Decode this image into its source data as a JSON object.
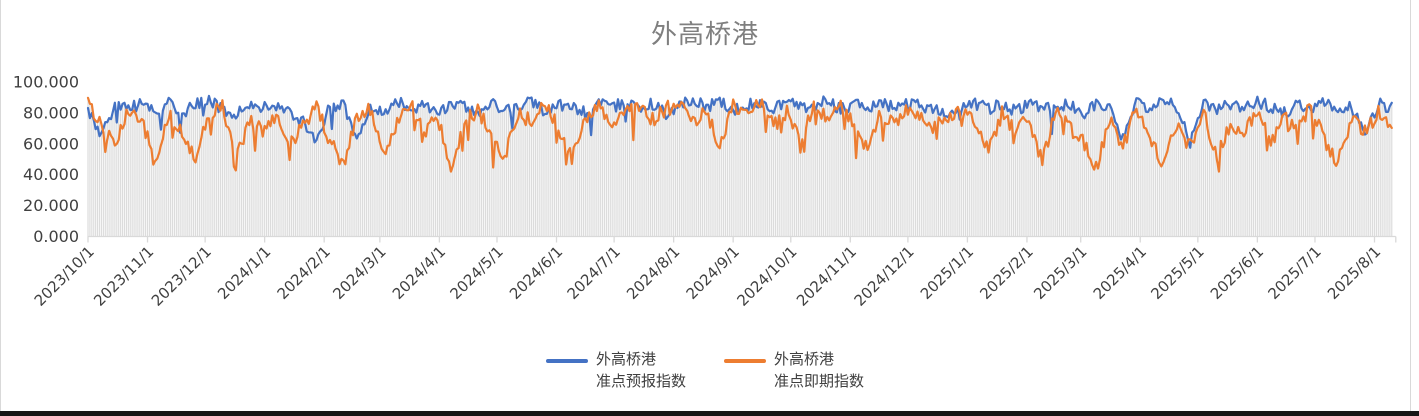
{
  "frame": {
    "border_color": "#d9d9d9",
    "bottom_bar_color": "#161616",
    "background": "#ffffff"
  },
  "chart_data": {
    "type": "line",
    "title": "外高桥港",
    "title_color": "#7f7f7f",
    "grid": false,
    "legend_position": "bottom",
    "ylim": [
      0,
      100
    ],
    "yticks": [
      {
        "v": 0,
        "label": "0.000"
      },
      {
        "v": 20,
        "label": "20.000"
      },
      {
        "v": 40,
        "label": "40.000"
      },
      {
        "v": 60,
        "label": "60.000"
      },
      {
        "v": 80,
        "label": "80.000"
      },
      {
        "v": 100,
        "label": "100.000"
      }
    ],
    "xticks": [
      {
        "label": "2023/10/1",
        "day": 0
      },
      {
        "label": "2023/11/1",
        "day": 31
      },
      {
        "label": "2023/12/1",
        "day": 61
      },
      {
        "label": "2024/1/1",
        "day": 92
      },
      {
        "label": "2024/2/1",
        "day": 123
      },
      {
        "label": "2024/3/1",
        "day": 152
      },
      {
        "label": "2024/4/1",
        "day": 183
      },
      {
        "label": "2024/5/1",
        "day": 213
      },
      {
        "label": "2024/6/1",
        "day": 244
      },
      {
        "label": "2024/7/1",
        "day": 274
      },
      {
        "label": "2024/8/1",
        "day": 305
      },
      {
        "label": "2024/9/1",
        "day": 336
      },
      {
        "label": "2024/10/1",
        "day": 366
      },
      {
        "label": "2024/11/1",
        "day": 397
      },
      {
        "label": "2024/12/1",
        "day": 427
      },
      {
        "label": "2025/1/1",
        "day": 458
      },
      {
        "label": "2025/2/1",
        "day": 489
      },
      {
        "label": "2025/3/1",
        "day": 517
      },
      {
        "label": "2025/4/1",
        "day": 548
      },
      {
        "label": "2025/5/1",
        "day": 578
      },
      {
        "label": "2025/6/1",
        "day": 609
      },
      {
        "label": "2025/7/1",
        "day": 639
      },
      {
        "label": "2025/8/1",
        "day": 670
      }
    ],
    "x_total_days": 680,
    "anchor_interval_days": 7,
    "seed": 20231001,
    "axis_color": "#d9d9d9",
    "label_color": "#404040",
    "droplines": {
      "enabled": true,
      "color": "#dcdcdc"
    },
    "series": [
      {
        "name": "外高桥港\n准点预报指数",
        "color": "#4472C4",
        "noise": 4,
        "dip_prob": 0.015,
        "dip_extra": 12,
        "min": 56,
        "max": 91,
        "weekly_values": [
          80,
          66,
          85,
          83,
          86,
          82,
          87,
          80,
          85,
          88,
          83,
          79,
          86,
          84,
          85,
          80,
          74,
          62,
          84,
          86,
          65,
          84,
          81,
          87,
          83,
          85,
          79,
          86,
          84,
          80,
          87,
          82,
          85,
          88,
          81,
          86,
          83,
          80,
          86,
          84,
          87,
          83,
          86,
          80,
          85,
          88,
          84,
          87,
          82,
          85,
          86,
          83,
          87,
          84,
          85,
          88,
          82,
          86,
          84,
          87,
          83,
          86,
          85,
          82,
          80,
          84,
          86,
          83,
          85,
          81,
          87,
          84,
          82,
          86,
          79,
          85,
          83,
          63,
          86,
          82,
          87,
          84,
          60,
          85,
          83,
          86,
          82,
          87,
          84,
          80,
          85,
          83,
          86,
          81,
          84,
          68,
          86,
          83
        ]
      },
      {
        "name": "外高桥港\n准点即期指数",
        "color": "#ED7D31",
        "noise": 5,
        "dip_prob": 0.05,
        "dip_extra": 12,
        "min": 42,
        "max": 91,
        "weekly_values": [
          86,
          72,
          58,
          82,
          76,
          46,
          80,
          68,
          52,
          78,
          84,
          50,
          74,
          68,
          80,
          58,
          72,
          84,
          62,
          47,
          76,
          83,
          55,
          72,
          86,
          68,
          78,
          45,
          74,
          82,
          66,
          52,
          80,
          74,
          86,
          70,
          50,
          78,
          84,
          72,
          80,
          86,
          76,
          82,
          88,
          74,
          80,
          60,
          84,
          78,
          86,
          72,
          80,
          62,
          84,
          76,
          88,
          70,
          58,
          80,
          74,
          82,
          76,
          70,
          78,
          84,
          72,
          55,
          80,
          68,
          76,
          48,
          82,
          70,
          62,
          44,
          76,
          58,
          84,
          66,
          46,
          72,
          58,
          80,
          52,
          74,
          68,
          82,
          60,
          76,
          70,
          84,
          62,
          48,
          76,
          68,
          80,
          74
        ]
      }
    ]
  }
}
